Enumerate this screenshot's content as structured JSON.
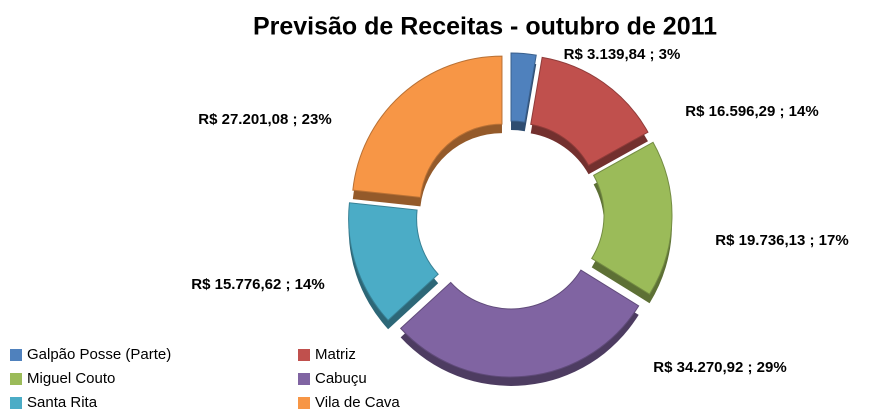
{
  "chart_data": {
    "type": "doughnut",
    "title": "Previsão de Receitas - outubro de 2011",
    "categories": [
      "Galpão Posse (Parte)",
      "Matriz",
      "Miguel Couto",
      "Cabuçu",
      "Santa Rita",
      "Vila de Cava"
    ],
    "values": [
      3139.84,
      16596.29,
      19736.13,
      34270.92,
      15776.62,
      27201.08
    ],
    "value_labels": [
      "R$ 3.139,84 ; 3%",
      "R$ 16.596,29 ; 14%",
      "R$ 19.736,13 ; 17%",
      "R$ 34.270,92 ; 29%",
      "R$ 15.776,62 ; 14%",
      "R$ 27.201,08 ; 23%"
    ],
    "colors": [
      "#4f81bd",
      "#c0504d",
      "#9bbb59",
      "#8064a2",
      "#4bacc6",
      "#f79646"
    ],
    "legend": "bottom-left"
  }
}
